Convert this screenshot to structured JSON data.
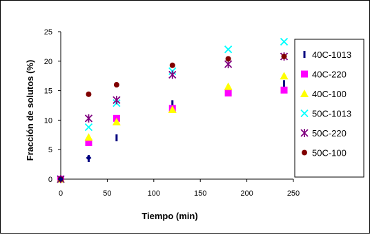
{
  "chart_data": {
    "type": "scatter",
    "title": "",
    "xlabel": "Tiempo (min)",
    "ylabel": "Fracción de solutos (%)",
    "xlim": [
      0,
      250
    ],
    "ylim": [
      0,
      25
    ],
    "xticks": [
      0,
      50,
      100,
      150,
      200,
      250
    ],
    "yticks": [
      0,
      5,
      10,
      15,
      20,
      25
    ],
    "grid": false,
    "legend_position": "right",
    "series": [
      {
        "name": "40C-1013",
        "marker": "dash",
        "color": "#000080",
        "x": [
          0,
          30,
          60,
          120,
          180,
          240
        ],
        "y": [
          0,
          3.5,
          7.0,
          12.8,
          15.0,
          16.2
        ]
      },
      {
        "name": "40C-220",
        "marker": "square",
        "color": "#ff00ff",
        "x": [
          0,
          30,
          60,
          120,
          180,
          240
        ],
        "y": [
          0,
          6.2,
          10.3,
          12.0,
          14.6,
          15.1
        ]
      },
      {
        "name": "40C-100",
        "marker": "triangle",
        "color": "#ffff00",
        "x": [
          0,
          30,
          60,
          120,
          180,
          240
        ],
        "y": [
          0,
          7.1,
          9.7,
          11.8,
          15.7,
          17.5
        ]
      },
      {
        "name": "50C-1013",
        "marker": "x",
        "color": "#00ffff",
        "x": [
          0,
          30,
          60,
          120,
          180,
          240
        ],
        "y": [
          0,
          8.8,
          12.9,
          18.3,
          22.0,
          23.3
        ]
      },
      {
        "name": "50C-220",
        "marker": "star",
        "color": "#800080",
        "x": [
          0,
          30,
          60,
          120,
          180,
          240
        ],
        "y": [
          0,
          10.3,
          13.4,
          17.7,
          19.5,
          20.8
        ]
      },
      {
        "name": "50C-100",
        "marker": "circle",
        "color": "#800000",
        "x": [
          0,
          30,
          60,
          120,
          180,
          240
        ],
        "y": [
          0,
          14.4,
          16.0,
          19.3,
          20.4,
          20.8
        ]
      }
    ],
    "extra_points": [
      {
        "marker": "diamond",
        "color": "#000080",
        "x": [
          0,
          30
        ],
        "y": [
          0,
          3.6
        ]
      }
    ]
  }
}
